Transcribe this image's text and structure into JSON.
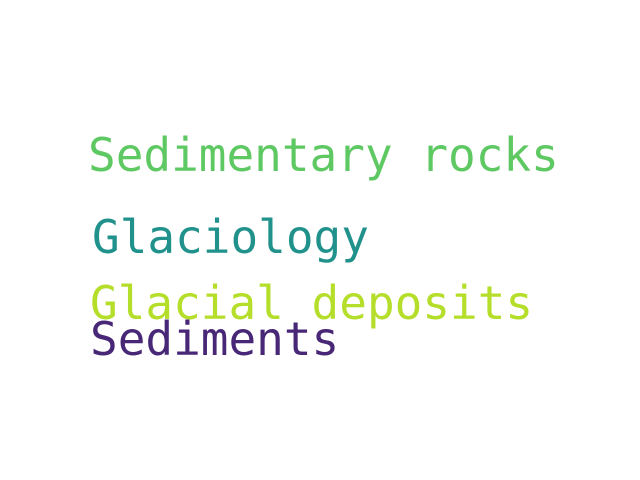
{
  "word_cloud": {
    "words": [
      {
        "text": "Sedimentary rocks",
        "color": "#5ec962"
      },
      {
        "text": "Glaciology",
        "color": "#21918c"
      },
      {
        "text": "Glacial deposits",
        "color": "#b5de2b"
      },
      {
        "text": "Sediments",
        "color": "#482777"
      }
    ]
  }
}
